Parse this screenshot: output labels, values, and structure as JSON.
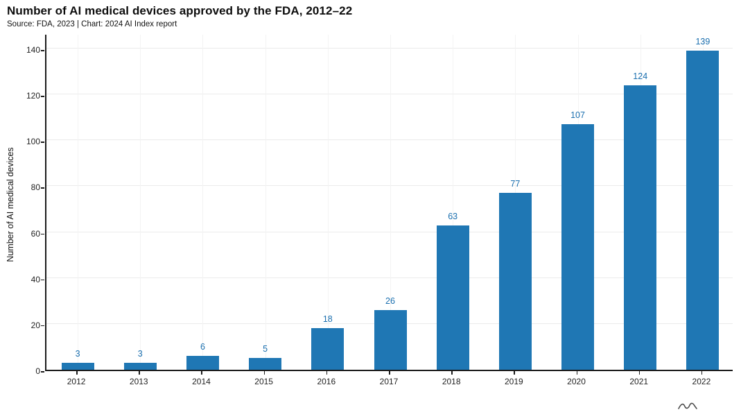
{
  "header": {
    "title": "Number of AI medical devices approved by the FDA, 2012–22",
    "subtitle": "Source: FDA, 2023 | Chart: 2024 AI Index report"
  },
  "chart_data": {
    "type": "bar",
    "title": "Number of AI medical devices approved by the FDA, 2012–22",
    "categories": [
      "2012",
      "2013",
      "2014",
      "2015",
      "2016",
      "2017",
      "2018",
      "2019",
      "2020",
      "2021",
      "2022"
    ],
    "values": [
      3,
      3,
      6,
      5,
      18,
      26,
      63,
      77,
      107,
      124,
      139
    ],
    "xlabel": "",
    "ylabel": "Number of AI medical devices",
    "ylim": [
      0,
      140
    ],
    "yticks": [
      0,
      20,
      40,
      60,
      80,
      100,
      120,
      140
    ],
    "bar_color": "#1f77b4",
    "label_color": "#1a6faf",
    "grid": true,
    "legend": "none"
  }
}
